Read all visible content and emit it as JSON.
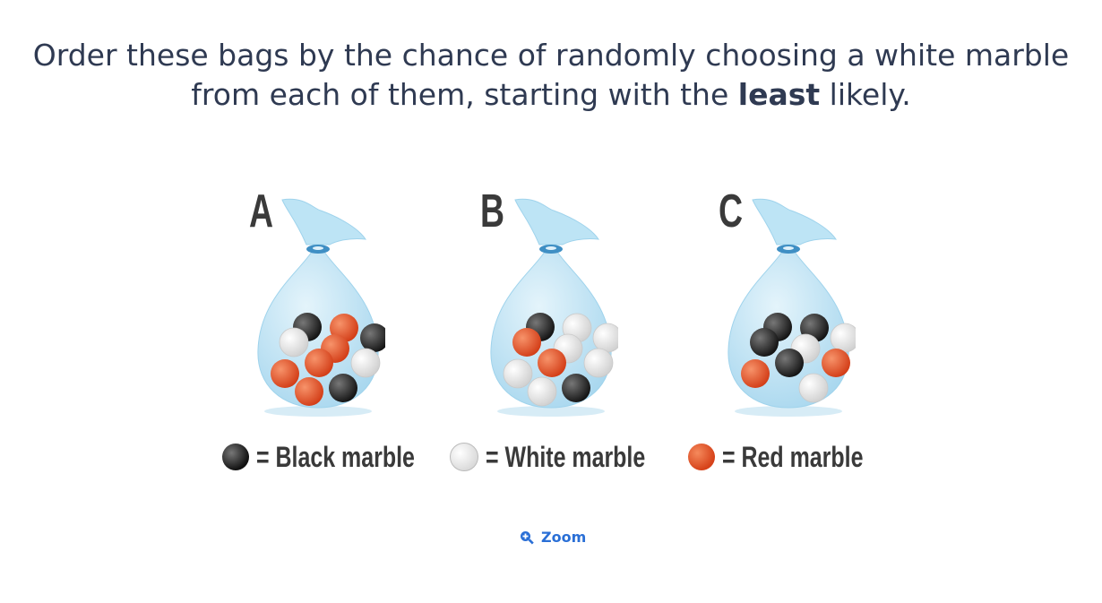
{
  "question": {
    "line1": "Order these bags by the chance of randomly choosing a white marble",
    "line2_pre": "from each of them, starting with the ",
    "line2_bold": "least",
    "line2_post": " likely."
  },
  "bags": [
    {
      "label": "A",
      "marbles": [
        "black",
        "red",
        "white",
        "red",
        "black",
        "red",
        "white",
        "red",
        "black",
        "red"
      ]
    },
    {
      "label": "B",
      "marbles": [
        "black",
        "white",
        "red",
        "white",
        "white",
        "red",
        "white",
        "white",
        "black",
        "white"
      ]
    },
    {
      "label": "C",
      "marbles": [
        "black",
        "black",
        "black",
        "white",
        "white",
        "black",
        "red",
        "red",
        "white"
      ]
    }
  ],
  "legend": [
    {
      "color": "black",
      "text": "= Black marble"
    },
    {
      "color": "white",
      "text": "= White marble"
    },
    {
      "color": "red",
      "text": "= Red marble"
    }
  ],
  "colors": {
    "black": "#2a2a2a",
    "white": "#f2f2f2",
    "red": "#e2532a",
    "bag": "#bfe4f4",
    "link": "#2a6fd6"
  },
  "zoom": {
    "label": "Zoom",
    "icon": "zoom-in-icon"
  }
}
